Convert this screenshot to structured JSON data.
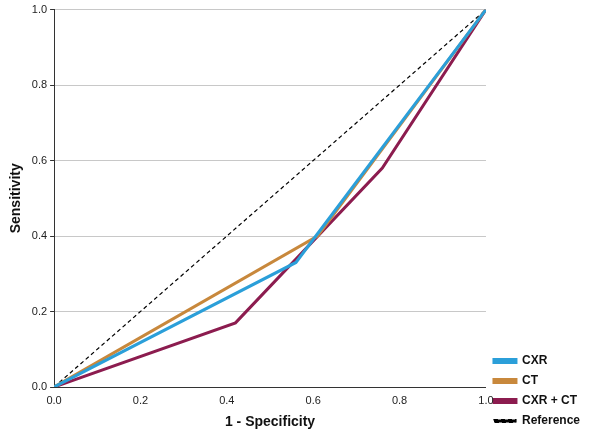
{
  "chart_data": {
    "type": "line",
    "x_label": "1 - Specificity",
    "y_label": "Sensitivity",
    "xlim": [
      0,
      1
    ],
    "ylim": [
      0,
      1
    ],
    "xticks": [
      {
        "value": 0,
        "label": "0.0"
      },
      {
        "value": 0.2,
        "label": "0.2"
      },
      {
        "value": 0.4,
        "label": "0.4"
      },
      {
        "value": 0.6,
        "label": "0.6"
      },
      {
        "value": 0.8,
        "label": "0.8"
      },
      {
        "value": 1,
        "label": "1.0"
      }
    ],
    "yticks": [
      {
        "value": 0,
        "label": "0.0"
      },
      {
        "value": 0.2,
        "label": "0.2"
      },
      {
        "value": 0.4,
        "label": "0.4"
      },
      {
        "value": 0.6,
        "label": "0.6"
      },
      {
        "value": 0.8,
        "label": "0.8"
      },
      {
        "value": 1,
        "label": "1.0"
      }
    ],
    "grid": "y",
    "legend": "right",
    "series": [
      {
        "name": "CXR",
        "color": "#2b9fd9",
        "line_style": "solid",
        "x": [
          0,
          0.56,
          1
        ],
        "values": [
          0,
          0.33,
          1
        ]
      },
      {
        "name": "CT",
        "color": "#c8883c",
        "line_style": "solid",
        "x": [
          0,
          0.61,
          1
        ],
        "values": [
          0,
          0.4,
          1
        ]
      },
      {
        "name": "CXR + CT",
        "color": "#8c1c4f",
        "line_style": "solid",
        "x": [
          0,
          0.42,
          0.76,
          1
        ],
        "values": [
          0,
          0.17,
          0.58,
          1
        ]
      },
      {
        "name": "Reference",
        "color": "#000000",
        "line_style": "dashed",
        "x": [
          0,
          1
        ],
        "values": [
          0,
          1
        ]
      }
    ]
  }
}
